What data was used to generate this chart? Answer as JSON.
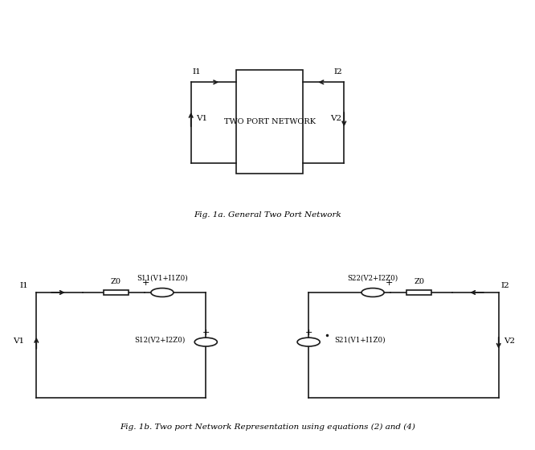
{
  "fig_width": 6.66,
  "fig_height": 5.6,
  "bg_color": "#ffffff",
  "line_color": "#1a1a1a",
  "line_width": 1.2,
  "fig1a_caption": "Fig. 1a. General Two Port Network",
  "fig1b_caption": "Fig. 1b. Two port Network Representation using equations (2) and (4)",
  "box_label": "TWO PORT NETWORK",
  "font_family": "DejaVu Serif"
}
